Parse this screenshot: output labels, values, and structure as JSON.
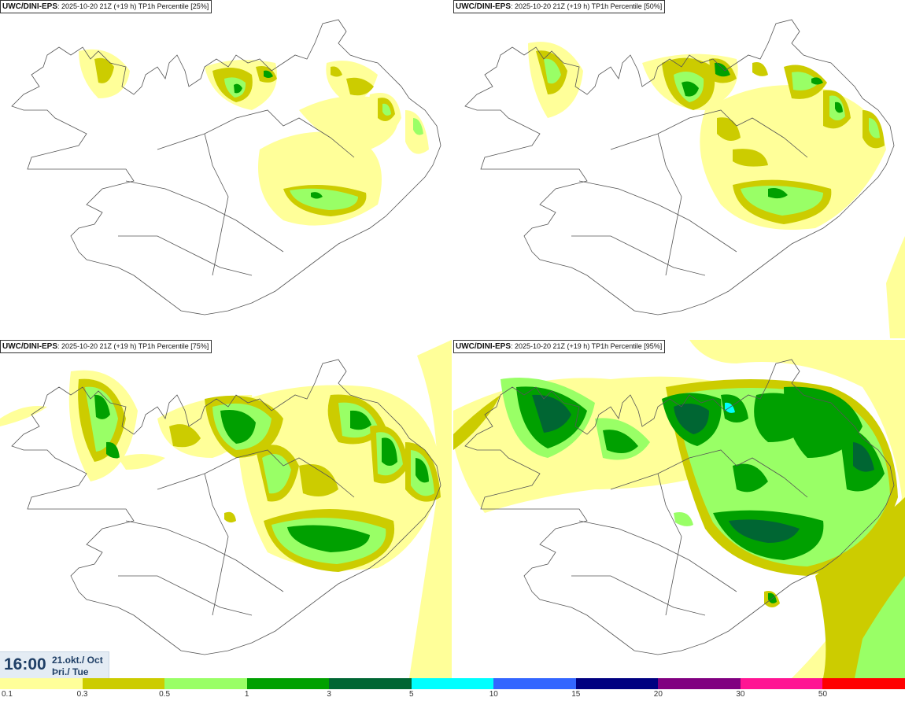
{
  "panels": [
    {
      "model": "UWC/DINI-EPS",
      "run": ": 2025-10-20 21Z (+19 h)",
      "field": "TP1h Percentile [25%]"
    },
    {
      "model": "UWC/DINI-EPS",
      "run": ": 2025-10-20 21Z (+19 h)",
      "field": "TP1h Percentile [50%]"
    },
    {
      "model": "UWC/DINI-EPS",
      "run": ": 2025-10-20 21Z (+19 h)",
      "field": "TP1h Percentile [75%]"
    },
    {
      "model": "UWC/DINI-EPS",
      "run": ": 2025-10-20 21Z (+19 h)",
      "field": "TP1h Percentile [95%]"
    }
  ],
  "valid_time": {
    "time": "16:00",
    "date": "21.okt./ Oct",
    "weekday": "Þri./ Tue"
  },
  "legend": {
    "labels": [
      "0.1",
      "0.3",
      "0.5",
      "1",
      "3",
      "5",
      "10",
      "15",
      "20",
      "30",
      "50"
    ],
    "colors": [
      "#ffff99",
      "#cccc00",
      "#99ff66",
      "#00a000",
      "#006633",
      "#00ffff",
      "#3366ff",
      "#000080",
      "#800080",
      "#ff1493",
      "#ff0000"
    ]
  },
  "colors": {
    "map_background": "#ffffff",
    "coastline": "#555555",
    "timebox_bg": "#e4ecf4",
    "timebox_text": "#1f3f66"
  }
}
